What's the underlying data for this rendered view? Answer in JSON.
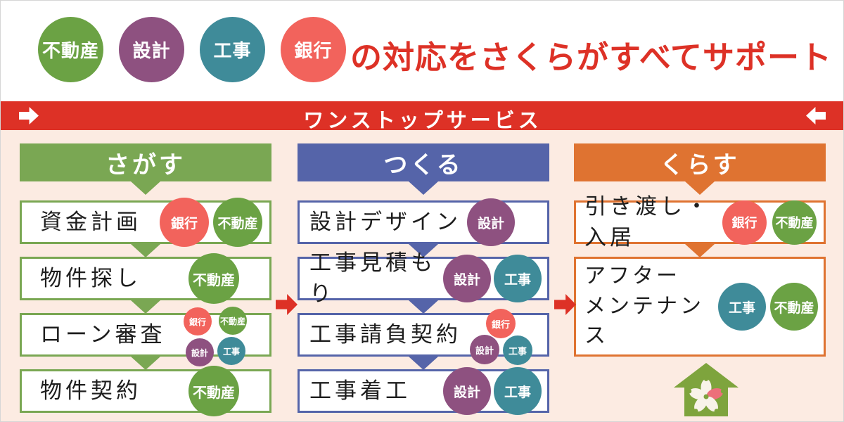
{
  "colors": {
    "real_estate": "#6ba244",
    "design": "#8e5180",
    "construction": "#3f8b99",
    "bank": "#f2635c",
    "accent_red": "#dd3126",
    "col_green": "#7aa753",
    "col_blue": "#5564a9",
    "col_orange": "#df7331",
    "background_pink": "#fcebe2",
    "house_green": "#7ea43d",
    "petal_white": "#f8f3e9",
    "petal_pink": "#ec707a"
  },
  "header": {
    "circles": [
      {
        "label": "不動産",
        "color_key": "real_estate"
      },
      {
        "label": "設計",
        "color_key": "design"
      },
      {
        "label": "工事",
        "color_key": "construction"
      },
      {
        "label": "銀行",
        "color_key": "bank"
      }
    ],
    "headline": "の対応をさくらがすべてサポート"
  },
  "banner": {
    "label": "ワンストップサービス"
  },
  "tag_color_keys": {
    "不動産": "real_estate",
    "設計": "design",
    "工事": "construction",
    "銀行": "bank"
  },
  "columns": [
    {
      "title": "さがす",
      "color_key": "col_green",
      "steps": [
        {
          "label": "資金計画",
          "tags": [
            "銀行",
            "不動産"
          ]
        },
        {
          "label": "物件探し",
          "tags": [
            "不動産"
          ]
        },
        {
          "label": "ローン審査",
          "tags": [
            "銀行",
            "不動産",
            "設計",
            "工事"
          ]
        },
        {
          "label": "物件契約",
          "tags": [
            "不動産"
          ]
        }
      ]
    },
    {
      "title": "つくる",
      "color_key": "col_blue",
      "steps": [
        {
          "label": "設計デザイン",
          "tags": [
            "設計"
          ]
        },
        {
          "label": "工事見積もり",
          "tags": [
            "設計",
            "工事"
          ]
        },
        {
          "label": "工事請負契約",
          "tags": [
            "銀行",
            "設計",
            "工事"
          ]
        },
        {
          "label": "工事着工",
          "tags": [
            "設計",
            "工事"
          ]
        }
      ]
    },
    {
      "title": "くらす",
      "color_key": "col_orange",
      "steps": [
        {
          "label": "引き渡し・入居",
          "tags": [
            "銀行",
            "不動産"
          ]
        },
        {
          "label": "アフター\nメンテナンス",
          "tags": [
            "工事",
            "不動産"
          ]
        }
      ]
    }
  ]
}
